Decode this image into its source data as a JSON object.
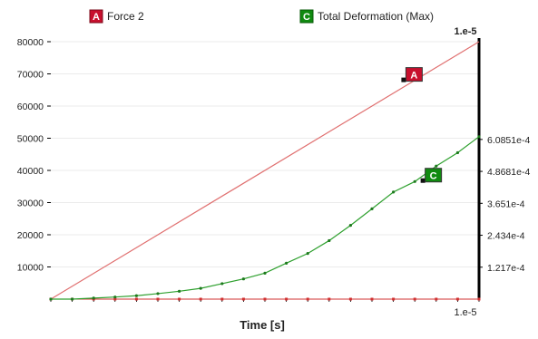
{
  "legend": [
    {
      "key": "A",
      "label": "Force 2",
      "color": "#c8102e"
    },
    {
      "key": "C",
      "label": "Total Deformation (Max)",
      "color": "#108a10"
    }
  ],
  "colors": {
    "force_line": "#e07070",
    "deformation_line": "#2ea02e",
    "axis": "#000000",
    "grid": "#d8d8d8",
    "zero_markers": "#d03030"
  },
  "chart_data": {
    "type": "line",
    "xlabel": "Time [s]",
    "x_end_label": "1.e-5",
    "x_top_label": "1.e-5",
    "xlim": [
      0,
      1e-05
    ],
    "y_left": {
      "ticks": [
        10000,
        20000,
        30000,
        40000,
        50000,
        60000,
        70000,
        80000
      ],
      "tick_labels": [
        "10000",
        "20000",
        "30000",
        "40000",
        "50000",
        "60000",
        "70000",
        "80000"
      ],
      "ylim": [
        0,
        80000
      ]
    },
    "y_right": {
      "ticks": [
        0.0001217,
        0.0002434,
        0.0003651,
        0.00048681,
        0.00060851
      ],
      "tick_labels": [
        "1.217e-4",
        "2.434e-4",
        "3.651e-4",
        "4.8681e-4",
        "6.0851e-4"
      ],
      "ylim": [
        0,
        0.000981
      ]
    },
    "series": [
      {
        "key": "A",
        "axis": "left",
        "x": [
          0,
          1e-05
        ],
        "values": [
          0,
          80000
        ]
      },
      {
        "key": "C",
        "axis": "right",
        "x": [
          0,
          5e-07,
          1e-06,
          1.5e-06,
          2e-06,
          2.5e-06,
          3e-06,
          3.5e-06,
          4e-06,
          4.5e-06,
          5e-06,
          5.5e-06,
          6e-06,
          6.5e-06,
          7e-06,
          7.5e-06,
          8e-06,
          8.5e-06,
          9e-06,
          9.5e-06,
          1e-05
        ],
        "values": [
          0,
          0,
          4e-06,
          8e-06,
          1.3e-05,
          2.1e-05,
          3e-05,
          4.1e-05,
          5.9e-05,
          7.7e-05,
          9.9e-05,
          0.000137,
          0.000174,
          0.000223,
          0.000281,
          0.000344,
          0.000408,
          0.000448,
          0.000507,
          0.000558,
          0.000619
        ]
      }
    ],
    "callouts": [
      {
        "key": "A",
        "x": 8.25e-06,
        "axis": "left",
        "y": 68000
      },
      {
        "key": "C",
        "x": 8.7e-06,
        "axis": "right",
        "y": 0.00045
      }
    ],
    "zero_series_x": [
      0,
      5e-07,
      1e-06,
      1.5e-06,
      2e-06,
      2.5e-06,
      3e-06,
      3.5e-06,
      4e-06,
      4.5e-06,
      5e-06,
      5.5e-06,
      6e-06,
      6.5e-06,
      7e-06,
      7.5e-06,
      8e-06,
      8.5e-06,
      9e-06,
      9.5e-06,
      1e-05
    ]
  }
}
